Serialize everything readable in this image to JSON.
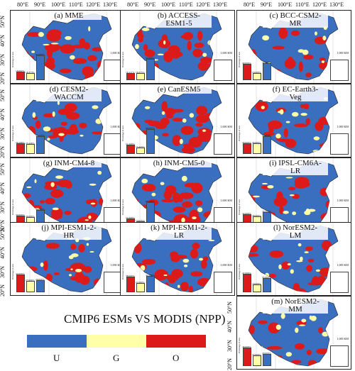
{
  "axis_top": [
    "80°E",
    "90°E",
    "100°E",
    "110°E",
    "120°E",
    "130°E"
  ],
  "axis_left": [
    "50°N",
    "40°N",
    "30°N",
    "20°N"
  ],
  "scale_label": "1,000 KM",
  "bar_axis_label": "Percentage of area",
  "categories": [
    "U",
    "G",
    "O"
  ],
  "colors": {
    "U": "#3a6fc0",
    "G": "#ffffa8",
    "O": "#dd1a1a"
  },
  "panels": [
    {
      "title_line1": "(a) MME",
      "title_line2": "",
      "values": [
        18.692,
        16.373,
        64.96
      ],
      "labels": [
        "18.692%",
        "16.373%",
        "64.960%"
      ]
    },
    {
      "title_line1": "(b) ACCESS-",
      "title_line2": "ESM1-5",
      "values": [
        16.111,
        16.275,
        54.608
      ],
      "labels": [
        "16.111%",
        "16.275%",
        "54.608%"
      ]
    },
    {
      "title_line1": "(c) BCC-CSM2-",
      "title_line2": "MR",
      "values": [
        40.0,
        16.0,
        42.0
      ],
      "labels": [
        "40.000%",
        "16.000%",
        "42.000%"
      ]
    },
    {
      "title_line1": "(d) CESM2-",
      "title_line2": "WACCM",
      "values": [
        26.208,
        23.446,
        45.125
      ],
      "labels": [
        "26.208%",
        "23.446%",
        "45.125%"
      ]
    },
    {
      "title_line1": "(e) CanESM5",
      "title_line2": "",
      "values": [
        21.5,
        13.443,
        65.057
      ],
      "labels": [
        "21.500%",
        "13.443%",
        "65.057%"
      ]
    },
    {
      "title_line1": "(f) EC-Earth3-",
      "title_line2": "Veg",
      "values": [
        26.0,
        26.0,
        45.0
      ],
      "labels": [
        "26.000%",
        "26.000%",
        "45.000%"
      ]
    },
    {
      "title_line1": "(g) INM-CM4-8",
      "title_line2": "",
      "values": [
        30.0,
        26.0,
        44.0
      ],
      "labels": [
        "30.000%",
        "26.000%",
        "44.000%"
      ]
    },
    {
      "title_line1": "(h) INM-CM5-0",
      "title_line2": "",
      "values": [
        21.0,
        13.035,
        66.0
      ],
      "labels": [
        "21.000%",
        "13.035%",
        "66.000%"
      ]
    },
    {
      "title_line1": "(i) IPSL-CM6A-",
      "title_line2": "LR",
      "values": [
        34.0,
        28.0,
        38.0
      ],
      "labels": [
        "34.000%",
        "28.000%",
        "38.000%"
      ]
    },
    {
      "title_line1": "(j) MPI-ESM1-2-",
      "title_line2": "HR",
      "values": [
        44.0,
        27.0,
        29.0
      ],
      "labels": [
        "44.000%",
        "27.000%",
        "29.000%"
      ]
    },
    {
      "title_line1": "(k) MPI-ESM1-2-",
      "title_line2": "LR",
      "values": [
        38.0,
        21.0,
        41.0
      ],
      "labels": [
        "38.000%",
        "21.000%",
        "41.000%"
      ]
    },
    {
      "title_line1": "(l) NorESM2-",
      "title_line2": "LM",
      "values": [
        47.0,
        18.0,
        35.0
      ],
      "labels": [
        "47.000%",
        "18.000%",
        "35.000%"
      ]
    },
    {
      "title_line1": "(m) NorESM2-",
      "title_line2": "MM",
      "values": [
        46.0,
        25.0,
        29.0
      ],
      "labels": [
        "46.000%",
        "25.000%",
        "29.000%"
      ]
    }
  ],
  "legend": {
    "title": "CMIP6 ESMs VS MODIS (NPP)",
    "labels": [
      "U",
      "G",
      "O"
    ]
  }
}
